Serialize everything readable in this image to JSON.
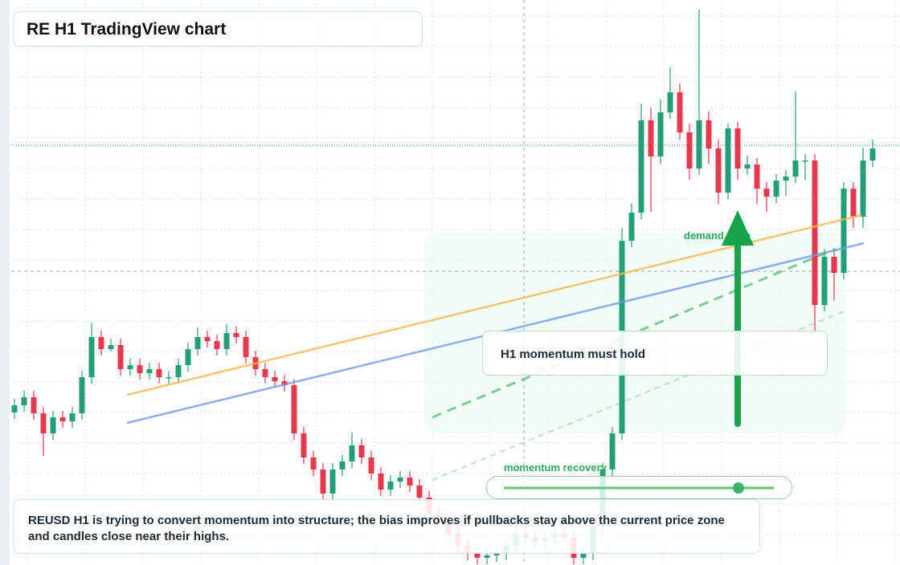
{
  "chart_data": {
    "type": "candlestick",
    "title": "RE H1 TradingView chart",
    "annotations": [
      "demand zone",
      "H1 momentum must hold",
      "momentum recovery"
    ],
    "note": "REUSD H1 is trying to convert momentum into structure; the bias improves if pullbacks stay above the current price zone and candles close near their highs.",
    "ylim": [
      0,
      704
    ],
    "up_color": "#22a07a",
    "down_color": "#e8384f",
    "open": [
      190,
      199,
      209,
      189,
      164,
      184,
      179,
      189,
      234,
      284,
      269,
      274,
      244,
      249,
      239,
      244,
      234,
      234,
      249,
      269,
      284,
      279,
      269,
      289,
      284,
      259,
      244,
      234,
      229,
      224,
      164,
      134,
      119,
      89,
      119,
      129,
      149,
      134,
      114,
      94,
      104,
      109,
      99,
      84,
      64,
      54,
      39,
      24,
      14,
      9,
      12,
      14,
      24,
      39,
      34,
      29,
      34,
      39,
      34,
      9,
      14,
      49,
      119,
      164,
      404,
      439,
      554,
      509,
      564,
      589,
      539,
      494,
      554,
      519,
      464,
      544,
      494,
      499,
      469,
      459,
      479,
      484,
      504,
      504,
      324,
      384,
      364,
      469,
      434,
      504
    ],
    "high": [
      207,
      217,
      217,
      197,
      192,
      192,
      197,
      242,
      302,
      292,
      282,
      282,
      257,
      257,
      252,
      252,
      242,
      257,
      277,
      296,
      292,
      287,
      300,
      297,
      292,
      267,
      252,
      242,
      237,
      232,
      172,
      142,
      127,
      127,
      137,
      165,
      157,
      142,
      122,
      112,
      117,
      117,
      107,
      92,
      72,
      62,
      47,
      32,
      22,
      20,
      22,
      32,
      47,
      47,
      42,
      42,
      47,
      47,
      42,
      22,
      57,
      127,
      172,
      420,
      450,
      575,
      570,
      580,
      620,
      600,
      550,
      692,
      565,
      530,
      550,
      552,
      510,
      507,
      477,
      487,
      492,
      590,
      512,
      512,
      394,
      392,
      477,
      477,
      520,
      530
    ],
    "low": [
      182,
      191,
      181,
      136,
      156,
      171,
      171,
      181,
      226,
      261,
      266,
      236,
      236,
      231,
      231,
      226,
      226,
      226,
      241,
      261,
      271,
      261,
      261,
      276,
      251,
      236,
      226,
      221,
      216,
      156,
      126,
      111,
      81,
      81,
      111,
      121,
      126,
      106,
      86,
      86,
      96,
      91,
      76,
      56,
      46,
      31,
      16,
      6,
      1,
      1,
      4,
      6,
      16,
      26,
      21,
      21,
      26,
      26,
      1,
      1,
      6,
      41,
      111,
      156,
      396,
      431,
      440,
      500,
      556,
      530,
      480,
      486,
      500,
      450,
      456,
      480,
      486,
      450,
      440,
      451,
      460,
      476,
      480,
      290,
      316,
      330,
      356,
      420,
      420,
      496
    ],
    "close": [
      199,
      209,
      189,
      164,
      184,
      179,
      189,
      234,
      284,
      269,
      274,
      244,
      249,
      239,
      244,
      234,
      234,
      249,
      269,
      284,
      279,
      269,
      289,
      284,
      259,
      244,
      234,
      229,
      224,
      164,
      134,
      119,
      89,
      119,
      129,
      149,
      134,
      114,
      94,
      104,
      109,
      99,
      84,
      64,
      54,
      39,
      24,
      14,
      9,
      12,
      14,
      24,
      39,
      34,
      29,
      34,
      39,
      34,
      9,
      14,
      49,
      119,
      164,
      404,
      439,
      554,
      509,
      564,
      589,
      539,
      494,
      554,
      519,
      464,
      544,
      494,
      499,
      469,
      459,
      479,
      484,
      504,
      504,
      324,
      384,
      364,
      469,
      434,
      504,
      519
    ]
  }
}
